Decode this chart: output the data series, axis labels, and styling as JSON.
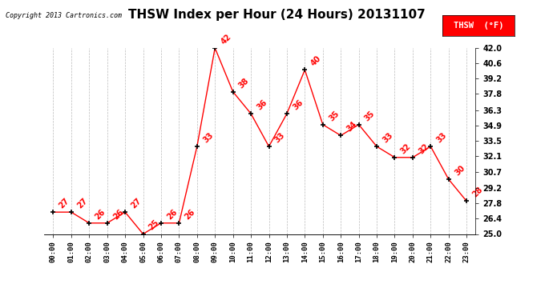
{
  "title": "THSW Index per Hour (24 Hours) 20131107",
  "copyright": "Copyright 2013 Cartronics.com",
  "legend_label": "THSW  (°F)",
  "hours": [
    0,
    1,
    2,
    3,
    4,
    5,
    6,
    7,
    8,
    9,
    10,
    11,
    12,
    13,
    14,
    15,
    16,
    17,
    18,
    19,
    20,
    21,
    22,
    23
  ],
  "values": [
    27,
    27,
    26,
    26,
    27,
    25,
    26,
    26,
    33,
    42,
    38,
    36,
    33,
    36,
    40,
    35,
    34,
    35,
    33,
    32,
    32,
    33,
    30,
    28
  ],
  "x_labels": [
    "00:00",
    "01:00",
    "02:00",
    "03:00",
    "04:00",
    "05:00",
    "06:00",
    "07:00",
    "08:00",
    "09:00",
    "10:00",
    "11:00",
    "12:00",
    "13:00",
    "14:00",
    "15:00",
    "16:00",
    "17:00",
    "18:00",
    "19:00",
    "20:00",
    "21:00",
    "22:00",
    "23:00"
  ],
  "y_ticks": [
    25.0,
    26.4,
    27.8,
    29.2,
    30.7,
    32.1,
    33.5,
    34.9,
    36.3,
    37.8,
    39.2,
    40.6,
    42.0
  ],
  "ylim": [
    25.0,
    42.0
  ],
  "line_color": "red",
  "marker_color": "black",
  "background_color": "white",
  "grid_color": "#bbbbbb",
  "title_fontsize": 11,
  "annotation_color": "red",
  "annotation_fontsize": 7
}
